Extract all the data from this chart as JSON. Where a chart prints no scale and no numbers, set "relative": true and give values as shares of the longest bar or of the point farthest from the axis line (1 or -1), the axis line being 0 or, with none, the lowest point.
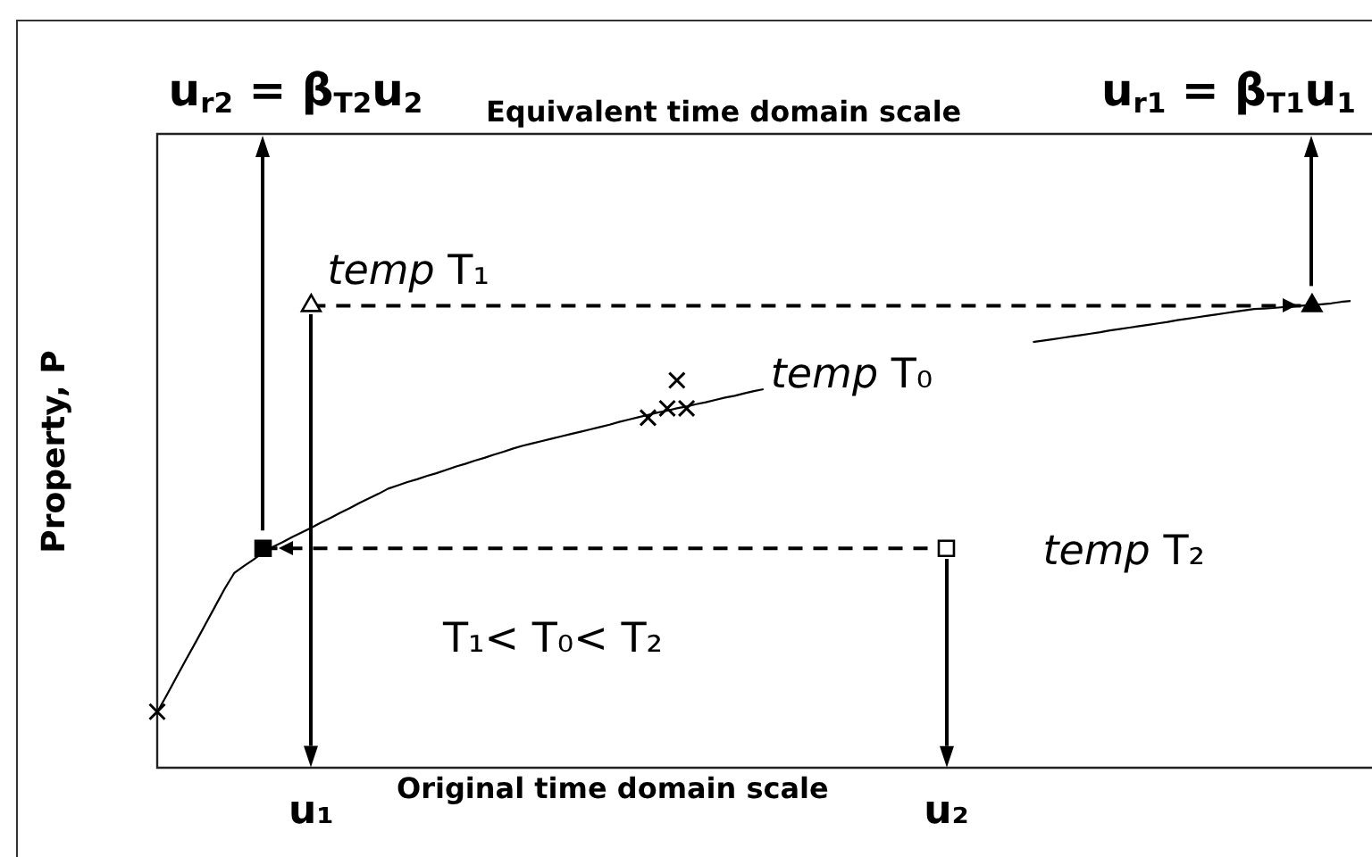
{
  "chart_data": {
    "type": "line",
    "relative": true,
    "grid": false,
    "legend": false,
    "tick_labels": "x",
    "xlabel": "Original time domain scale",
    "x2label": "Equivalent time domain scale",
    "ylabel": "Property, P",
    "annotations": [
      "u$_{r2}$ = β$_{T2}$u$_{2}$",
      "u$_{r1}$ = β$_{T1}$u$_{1}$",
      "T₁< T₀< T₂"
    ],
    "categories": [
      null,
      null,
      null,
      null,
      null,
      null,
      null,
      null,
      null,
      null,
      null,
      null,
      null,
      null,
      null,
      null,
      "u₁",
      null,
      null,
      null,
      null,
      null,
      null,
      null,
      null,
      null,
      null,
      null,
      null,
      null,
      null,
      null,
      null,
      null,
      null,
      null,
      null,
      null,
      null,
      null,
      null,
      null,
      null,
      null,
      null,
      null,
      null,
      null,
      null,
      null,
      null,
      null,
      null,
      null,
      null,
      null,
      null,
      null,
      null,
      null,
      null,
      null,
      null,
      null,
      null,
      null,
      null,
      null,
      null,
      null,
      null,
      null,
      null,
      null,
      null,
      null,
      null,
      null,
      null,
      null,
      null,
      null,
      "u₂",
      null,
      null,
      null,
      null,
      null,
      null,
      null,
      null,
      null,
      null,
      null,
      null,
      null,
      null,
      null,
      null,
      null,
      null,
      null,
      null,
      null,
      null,
      null,
      null,
      null,
      null,
      null,
      null,
      null,
      null,
      null,
      null,
      null,
      null,
      null,
      null,
      null,
      null,
      null,
      null,
      null,
      null
    ],
    "series": [
      {
        "name": "temp T₀",
        "color": "#000000",
        "marker": "none",
        "values": [
          0.119,
          0.156,
          0.194,
          0.232,
          0.269,
          0.307,
          0.345,
          0.383,
          0.417,
          0.432,
          0.446,
          0.461,
          0.473,
          0.483,
          0.494,
          0.504,
          0.514,
          0.525,
          0.535,
          0.546,
          0.556,
          0.567,
          0.577,
          0.587,
          0.598,
          0.605,
          0.612,
          0.618,
          0.625,
          0.631,
          0.638,
          0.645,
          0.651,
          0.658,
          0.664,
          0.671,
          0.677,
          0.684,
          0.69,
          0.695,
          0.7,
          0.705,
          0.71,
          0.715,
          0.72,
          0.725,
          0.73,
          0.735,
          0.741,
          0.746,
          0.751,
          0.756,
          0.761,
          0.765,
          0.77,
          0.774,
          0.779,
          0.783,
          0.788,
          0.793,
          0.797,
          0.802,
          0.807,
          0.811,
          null,
          null,
          null,
          null,
          null,
          null,
          null,
          null,
          null,
          null,
          null,
          null,
          null,
          null,
          null,
          null,
          null,
          null,
          null,
          null,
          null,
          null,
          null,
          null,
          null,
          null,
          null,
          0.912,
          0.915,
          0.918,
          0.921,
          0.924,
          0.927,
          0.93,
          0.933,
          0.937,
          0.94,
          0.943,
          0.946,
          0.949,
          0.952,
          0.955,
          0.959,
          0.962,
          0.965,
          0.968,
          0.971,
          0.974,
          0.977,
          0.98,
          0.983,
          0.984,
          0.985,
          0.987,
          0.988,
          0.99,
          0.991,
          0.993,
          0.995,
          0.998,
          1.0
        ]
      },
      {
        "type": "scatter",
        "color": "#000000",
        "marker": "cross",
        "values": [
          0.12,
          null,
          null,
          null,
          null,
          null,
          null,
          null,
          null,
          null,
          null,
          null,
          null,
          null,
          null,
          null,
          null,
          null,
          null,
          null,
          null,
          null,
          null,
          null,
          null,
          null,
          null,
          null,
          null,
          null,
          null,
          null,
          null,
          null,
          null,
          null,
          null,
          null,
          null,
          null,
          null,
          null,
          null,
          null,
          null,
          null,
          null,
          null,
          null,
          null,
          null,
          0.75,
          null,
          0.77,
          0.83,
          0.77,
          null,
          null,
          null,
          null,
          null,
          null,
          null,
          null,
          null,
          null,
          null,
          null,
          null,
          null,
          null,
          null,
          null,
          null,
          null,
          null,
          null,
          null,
          null,
          null,
          null,
          null,
          null,
          null,
          null,
          null,
          null,
          null,
          null,
          null,
          null,
          null,
          null,
          null,
          null,
          null,
          null,
          null,
          null,
          null,
          null,
          null,
          null,
          null,
          null,
          null,
          null,
          null,
          null,
          null,
          null,
          null,
          null,
          null,
          null,
          null,
          null,
          null,
          null,
          null,
          null,
          null,
          null,
          null,
          null
        ]
      },
      {
        "type": "scatter",
        "name": "temp T₁",
        "color": "#ffffff",
        "marker": "triangle",
        "values": [
          null,
          null,
          null,
          null,
          null,
          null,
          null,
          null,
          null,
          null,
          null,
          null,
          null,
          null,
          null,
          null,
          0.99,
          null,
          null,
          null,
          null,
          null,
          null,
          null,
          null,
          null,
          null,
          null,
          null,
          null,
          null,
          null,
          null,
          null,
          null,
          null,
          null,
          null,
          null,
          null,
          null,
          null,
          null,
          null,
          null,
          null,
          null,
          null,
          null,
          null,
          null,
          null,
          null,
          null,
          null,
          null,
          null,
          null,
          null,
          null,
          null,
          null,
          null,
          null,
          null,
          null,
          null,
          null,
          null,
          null,
          null,
          null,
          null,
          null,
          null,
          null,
          null,
          null,
          null,
          null,
          null,
          null,
          null,
          null,
          null,
          null,
          null,
          null,
          null,
          null,
          null,
          null,
          null,
          null,
          null,
          null,
          null,
          null,
          null,
          null,
          null,
          null,
          null,
          null,
          null,
          null,
          null,
          null,
          null,
          null,
          null,
          null,
          null,
          null,
          null,
          null,
          null,
          null,
          null,
          null,
          null,
          null,
          null,
          null,
          null
        ]
      },
      {
        "type": "scatter",
        "name": "temp T₂",
        "color": "#ffffff",
        "marker": "square",
        "values": [
          null,
          null,
          null,
          null,
          null,
          null,
          null,
          null,
          null,
          null,
          null,
          null,
          null,
          null,
          null,
          null,
          null,
          null,
          null,
          null,
          null,
          null,
          null,
          null,
          null,
          null,
          null,
          null,
          null,
          null,
          null,
          null,
          null,
          null,
          null,
          null,
          null,
          null,
          null,
          null,
          null,
          null,
          null,
          null,
          null,
          null,
          null,
          null,
          null,
          null,
          null,
          null,
          null,
          null,
          null,
          null,
          null,
          null,
          null,
          null,
          null,
          null,
          null,
          null,
          null,
          null,
          null,
          null,
          null,
          null,
          null,
          null,
          null,
          null,
          null,
          null,
          null,
          null,
          null,
          null,
          null,
          null,
          0.47,
          null,
          null,
          null,
          null,
          null,
          null,
          null,
          null,
          null,
          null,
          null,
          null,
          null,
          null,
          null,
          null,
          null,
          null,
          null,
          null,
          null,
          null,
          null,
          null,
          null,
          null,
          null,
          null,
          null,
          null,
          null,
          null,
          null,
          null,
          null,
          null,
          null,
          null,
          null,
          null,
          null,
          null
        ]
      },
      {
        "type": "scatter",
        "color": "#000000",
        "marker": "square",
        "values": [
          null,
          null,
          null,
          null,
          null,
          null,
          null,
          null,
          null,
          null,
          null,
          0.47,
          null,
          null,
          null,
          null,
          null,
          null,
          null,
          null,
          null,
          null,
          null,
          null,
          null,
          null,
          null,
          null,
          null,
          null,
          null,
          null,
          null,
          null,
          null,
          null,
          null,
          null,
          null,
          null,
          null,
          null,
          null,
          null,
          null,
          null,
          null,
          null,
          null,
          null,
          null,
          null,
          null,
          null,
          null,
          null,
          null,
          null,
          null,
          null,
          null,
          null,
          null,
          null,
          null,
          null,
          null,
          null,
          null,
          null,
          null,
          null,
          null,
          null,
          null,
          null,
          null,
          null,
          null,
          null,
          null,
          null,
          null,
          null,
          null,
          null,
          null,
          null,
          null,
          null,
          null,
          null,
          null,
          null,
          null,
          null,
          null,
          null,
          null,
          null,
          null,
          null,
          null,
          null,
          null,
          null,
          null,
          null,
          null,
          null,
          null,
          null,
          null,
          null,
          null,
          null,
          null,
          null,
          null,
          null,
          null,
          null,
          null,
          null,
          null
        ]
      },
      {
        "type": "scatter",
        "color": "#000000",
        "marker": "triangle",
        "values": [
          null,
          null,
          null,
          null,
          null,
          null,
          null,
          null,
          null,
          null,
          null,
          null,
          null,
          null,
          null,
          null,
          null,
          null,
          null,
          null,
          null,
          null,
          null,
          null,
          null,
          null,
          null,
          null,
          null,
          null,
          null,
          null,
          null,
          null,
          null,
          null,
          null,
          null,
          null,
          null,
          null,
          null,
          null,
          null,
          null,
          null,
          null,
          null,
          null,
          null,
          null,
          null,
          null,
          null,
          null,
          null,
          null,
          null,
          null,
          null,
          null,
          null,
          null,
          null,
          null,
          null,
          null,
          null,
          null,
          null,
          null,
          null,
          null,
          null,
          null,
          null,
          null,
          null,
          null,
          null,
          null,
          null,
          null,
          null,
          null,
          null,
          null,
          null,
          null,
          null,
          null,
          null,
          null,
          null,
          null,
          null,
          null,
          null,
          null,
          null,
          null,
          null,
          null,
          null,
          null,
          null,
          null,
          null,
          null,
          null,
          null,
          null,
          null,
          null,
          null,
          null,
          null,
          null,
          null,
          null,
          0.99,
          null,
          null,
          null,
          null
        ]
      },
      {
        "color": "#000000",
        "marker": "none",
        "line_style": "dashed",
        "values": [
          null,
          null,
          null,
          null,
          null,
          null,
          null,
          null,
          null,
          null,
          null,
          null,
          null,
          null,
          null,
          null,
          0.99,
          0.99,
          0.99,
          0.99,
          0.99,
          0.99,
          0.99,
          0.99,
          0.99,
          0.99,
          0.99,
          0.99,
          0.99,
          0.99,
          0.99,
          0.99,
          0.99,
          0.99,
          0.99,
          0.99,
          0.99,
          0.99,
          0.99,
          0.99,
          0.99,
          0.99,
          0.99,
          0.99,
          0.99,
          0.99,
          0.99,
          0.99,
          0.99,
          0.99,
          0.99,
          0.99,
          0.99,
          0.99,
          0.99,
          0.99,
          0.99,
          0.99,
          0.99,
          0.99,
          0.99,
          0.99,
          0.99,
          0.99,
          0.99,
          0.99,
          0.99,
          0.99,
          0.99,
          0.99,
          0.99,
          0.99,
          0.99,
          0.99,
          0.99,
          0.99,
          0.99,
          0.99,
          0.99,
          0.99,
          0.99,
          0.99,
          0.99,
          0.99,
          0.99,
          0.99,
          0.99,
          0.99,
          0.99,
          0.99,
          0.99,
          0.99,
          0.99,
          0.99,
          0.99,
          0.99,
          0.99,
          0.99,
          0.99,
          0.99,
          0.99,
          0.99,
          0.99,
          0.99,
          0.99,
          0.99,
          0.99,
          0.99,
          0.99,
          0.99,
          0.99,
          0.99,
          0.99,
          0.99,
          0.99,
          0.99,
          0.99,
          0.99,
          0.99,
          0.99,
          0.99,
          null,
          null,
          null,
          null
        ]
      },
      {
        "color": "#000000",
        "marker": "none",
        "line_style": "dashed",
        "values": [
          null,
          null,
          null,
          null,
          null,
          null,
          null,
          null,
          null,
          null,
          null,
          0.47,
          0.47,
          0.47,
          0.47,
          0.47,
          0.47,
          0.47,
          0.47,
          0.47,
          0.47,
          0.47,
          0.47,
          0.47,
          0.47,
          0.47,
          0.47,
          0.47,
          0.47,
          0.47,
          0.47,
          0.47,
          0.47,
          0.47,
          0.47,
          0.47,
          0.47,
          0.47,
          0.47,
          0.47,
          0.47,
          0.47,
          0.47,
          0.47,
          0.47,
          0.47,
          0.47,
          0.47,
          0.47,
          0.47,
          0.47,
          0.47,
          0.47,
          0.47,
          0.47,
          0.47,
          0.47,
          0.47,
          0.47,
          0.47,
          0.47,
          0.47,
          0.47,
          0.47,
          0.47,
          0.47,
          0.47,
          0.47,
          0.47,
          0.47,
          0.47,
          0.47,
          0.47,
          0.47,
          0.47,
          0.47,
          0.47,
          0.47,
          0.47,
          0.47,
          0.47,
          0.47,
          0.47,
          null,
          null,
          null,
          null,
          null,
          null,
          null,
          null,
          null,
          null,
          null,
          null,
          null,
          null,
          null,
          null,
          null,
          null,
          null,
          null,
          null,
          null,
          null,
          null,
          null,
          null,
          null,
          null,
          null,
          null,
          null,
          null,
          null,
          null,
          null,
          null,
          null,
          null,
          null,
          null,
          null,
          null
        ]
      }
    ]
  }
}
